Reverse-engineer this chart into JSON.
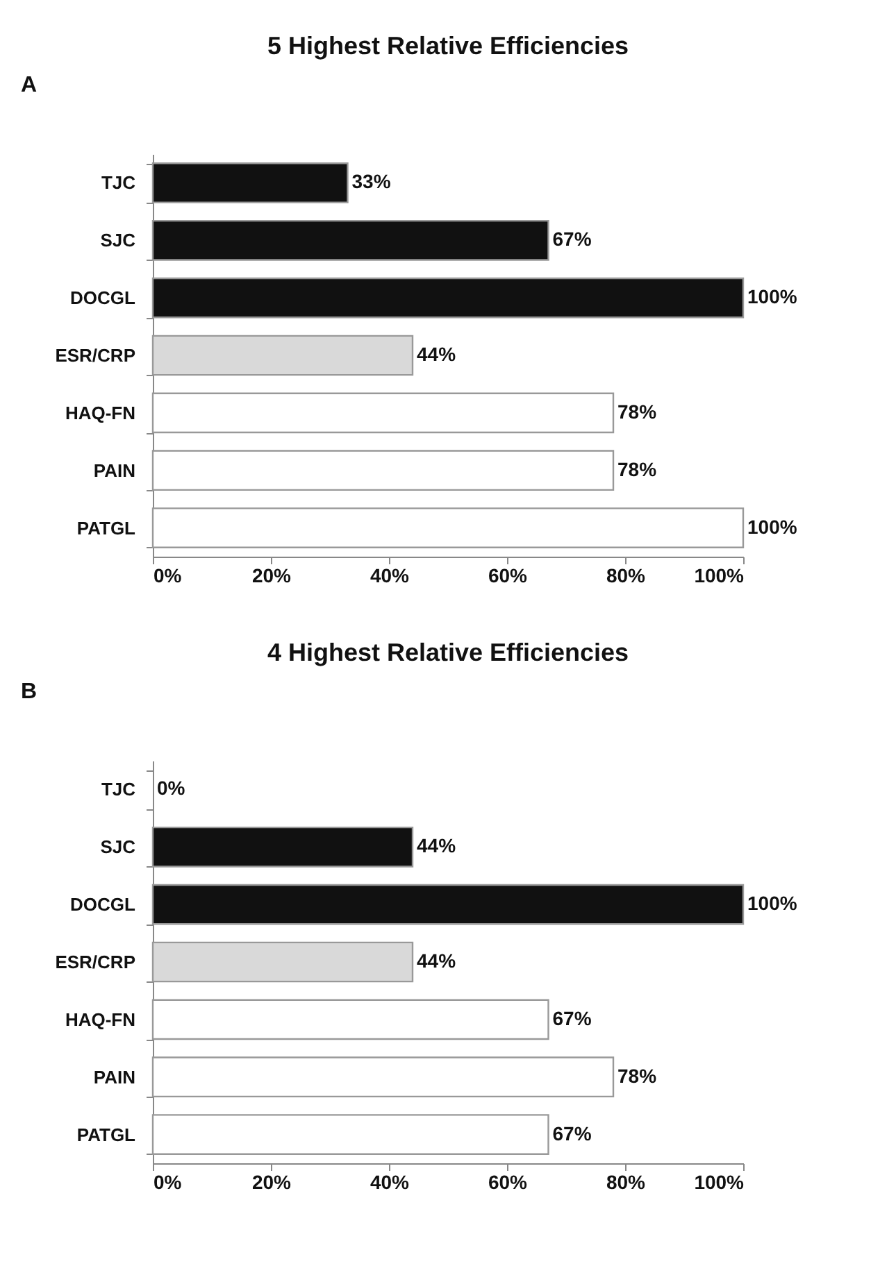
{
  "chart_data": [
    {
      "type": "bar",
      "orientation": "horizontal",
      "title": "5 Highest Relative Efficiencies",
      "annotations": [
        "A"
      ],
      "categories": [
        "TJC",
        "SJC",
        "DOCGL",
        "ESR/CRP",
        "HAQ-FN",
        "PAIN",
        "PATGL"
      ],
      "values": [
        33,
        67,
        100,
        44,
        78,
        78,
        100
      ],
      "value_labels": [
        "33%",
        "67%",
        "100%",
        "44%",
        "78%",
        "78%",
        "100%"
      ],
      "colors": [
        "#111111",
        "#111111",
        "#111111",
        "#d9d9d9",
        "#ffffff",
        "#ffffff",
        "#ffffff"
      ],
      "xlim": [
        0,
        100
      ],
      "xticks": [
        {
          "value": 0,
          "label": "0%"
        },
        {
          "value": 20,
          "label": "20%"
        },
        {
          "value": 40,
          "label": "40%"
        },
        {
          "value": 60,
          "label": "60%"
        },
        {
          "value": 80,
          "label": "80%"
        },
        {
          "value": 100,
          "label": "100%"
        }
      ],
      "grid": false
    },
    {
      "type": "bar",
      "orientation": "horizontal",
      "title": "4 Highest Relative Efficiencies",
      "annotations": [
        "B"
      ],
      "categories": [
        "TJC",
        "SJC",
        "DOCGL",
        "ESR/CRP",
        "HAQ-FN",
        "PAIN",
        "PATGL"
      ],
      "values": [
        0,
        44,
        100,
        44,
        67,
        78,
        67
      ],
      "value_labels": [
        "0%",
        "44%",
        "100%",
        "44%",
        "67%",
        "78%",
        "67%"
      ],
      "colors": [
        "#111111",
        "#111111",
        "#111111",
        "#d9d9d9",
        "#ffffff",
        "#ffffff",
        "#ffffff"
      ],
      "xlim": [
        0,
        100
      ],
      "xticks": [
        {
          "value": 0,
          "label": "0%"
        },
        {
          "value": 20,
          "label": "20%"
        },
        {
          "value": 40,
          "label": "40%"
        },
        {
          "value": 60,
          "label": "60%"
        },
        {
          "value": 80,
          "label": "80%"
        },
        {
          "value": 100,
          "label": "100%"
        }
      ],
      "grid": false
    }
  ]
}
